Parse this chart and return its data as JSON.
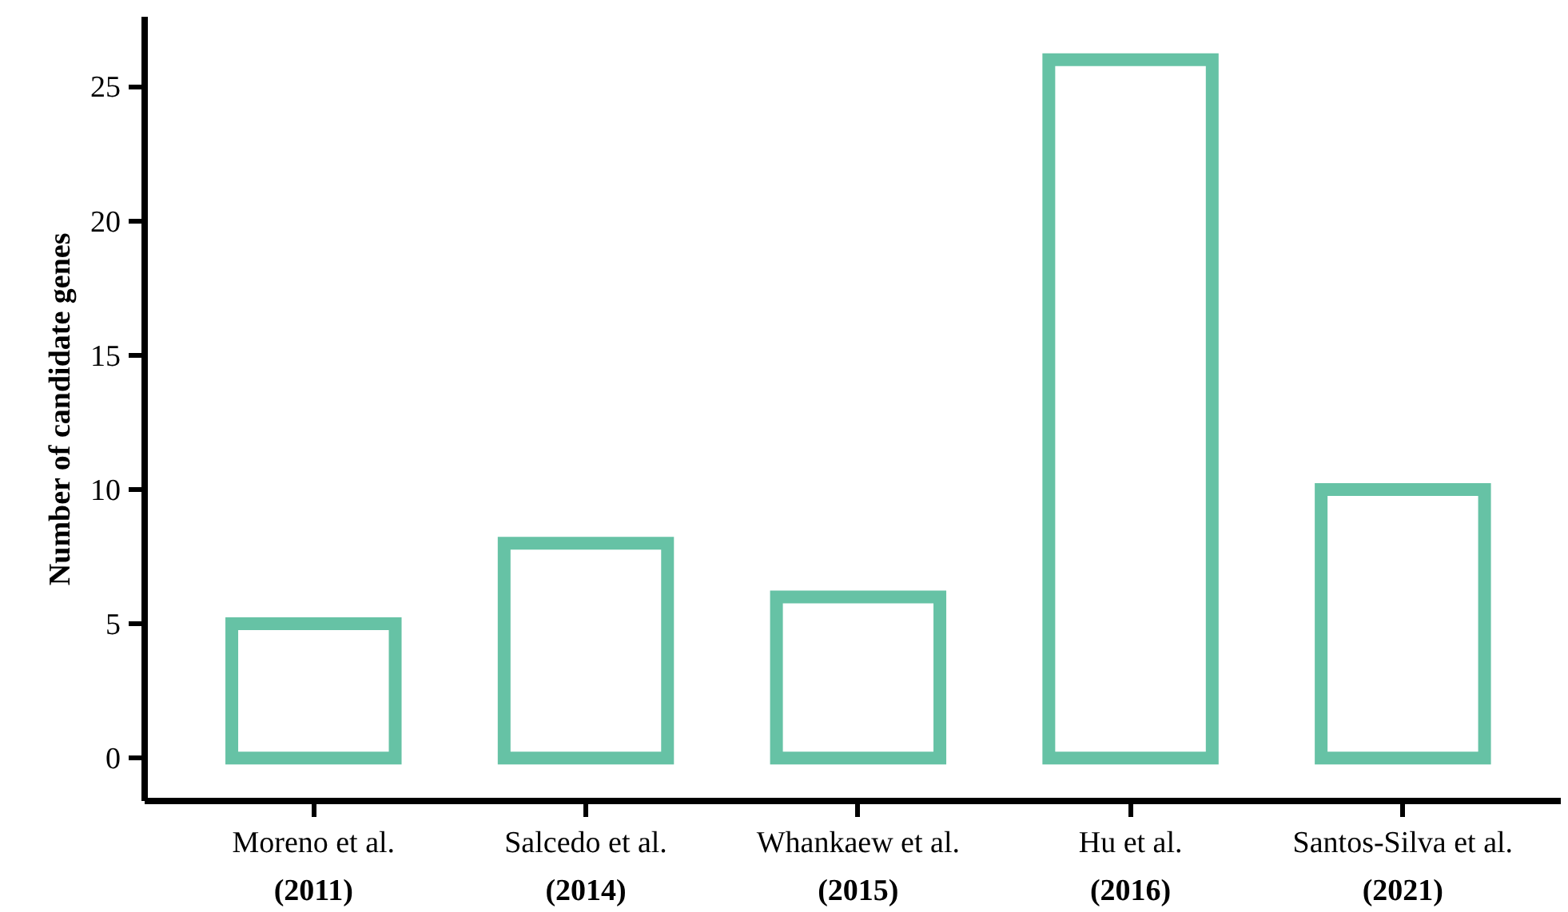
{
  "chart_data": {
    "type": "bar",
    "ylabel": "Number of candidate genes",
    "categories": [
      "Moreno et al.\n(2011)",
      "Salcedo et al.\n(2014)",
      "Whankaew et al.\n(2015)",
      "Hu et al.\n(2016)",
      "Santos-Silva et al.\n(2021)"
    ],
    "values": [
      5,
      8,
      6,
      26,
      10
    ],
    "color": "#66c2a5",
    "ylim": [
      -1.6,
      27.6
    ],
    "yticks": [
      0,
      5,
      10,
      15,
      20,
      25
    ],
    "grid": false
  }
}
